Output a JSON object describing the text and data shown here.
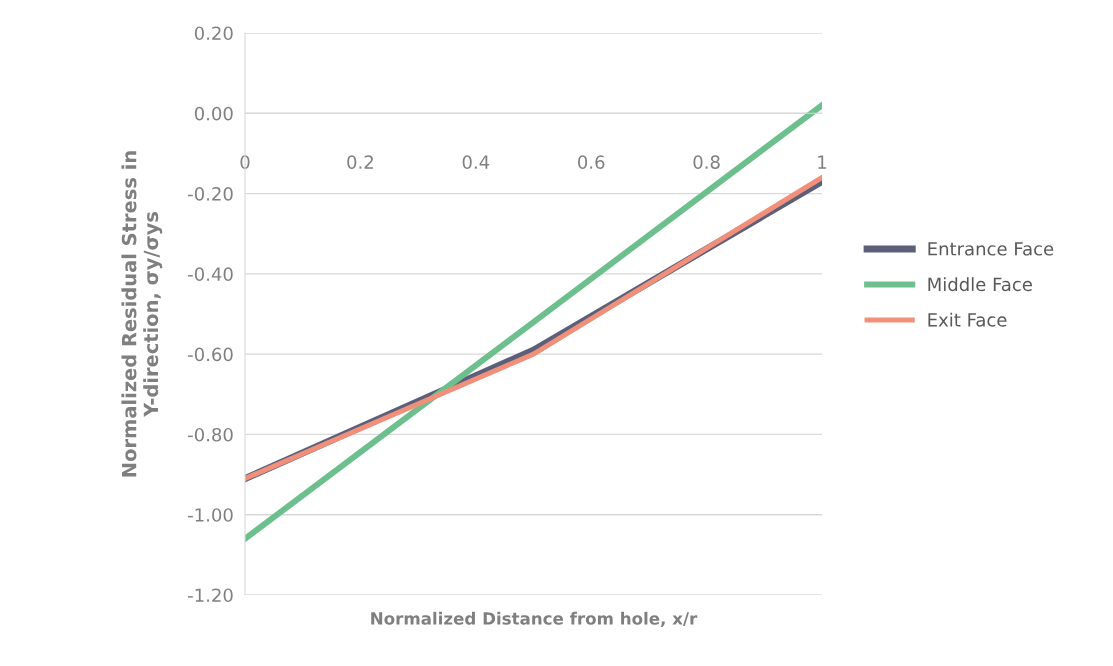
{
  "chart_data": {
    "type": "line",
    "xlabel": "Normalized Distance from hole, x/r",
    "ylabel": "Normalized Residual Stress in\nY-direction, σy/σys",
    "x": [
      0,
      0.5,
      1
    ],
    "series": [
      {
        "name": "Entrance Face",
        "color": "#5b5f7a",
        "values": [
          -0.91,
          -0.59,
          -0.17
        ]
      },
      {
        "name": "Middle Face",
        "color": "#6dbf8e",
        "values": [
          -1.06,
          -0.52,
          0.02
        ]
      },
      {
        "name": "Exit Face",
        "color": "#f0907a",
        "values": [
          -0.91,
          -0.6,
          -0.16
        ]
      }
    ],
    "xlim": [
      0,
      1
    ],
    "xticks": [
      0,
      0.2,
      0.4,
      0.6,
      0.8,
      1
    ],
    "ylim": [
      -1.2,
      0.2
    ],
    "yticks": [
      {
        "value": 0.2,
        "label": "0.20"
      },
      {
        "value": 0,
        "label": "0.00"
      },
      {
        "value": -0.2,
        "label": "-0.20"
      },
      {
        "value": -0.4,
        "label": "-0.40"
      },
      {
        "value": -0.6,
        "label": "-0.60"
      },
      {
        "value": -0.8,
        "label": "-0.80"
      },
      {
        "value": -1.0,
        "label": "-1.00"
      },
      {
        "value": -1.2,
        "label": "-1.20"
      }
    ],
    "grid": "y",
    "legend": "right",
    "marker": "none",
    "line_style": "solid"
  }
}
